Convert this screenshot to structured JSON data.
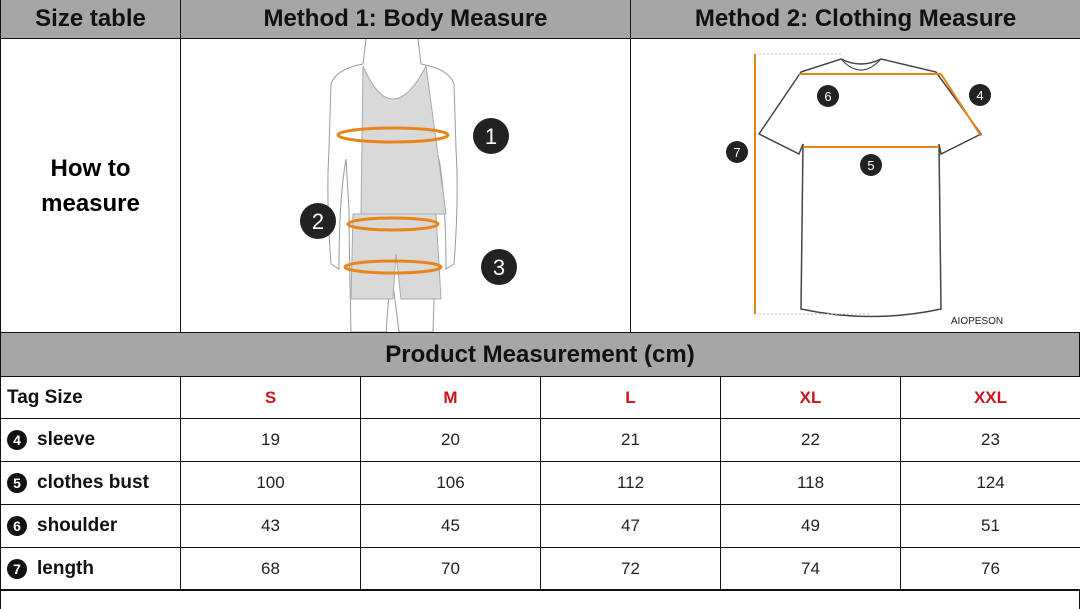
{
  "header": {
    "size_table": "Size table",
    "method1": "Method 1: Body  Measure",
    "method2": "Method 2: Clothing Measure"
  },
  "how_to": "How to measure",
  "body_markers": [
    "1",
    "2",
    "3"
  ],
  "shirt_markers": [
    "4",
    "5",
    "6",
    "7"
  ],
  "brand": "AIOPESON",
  "product_title": "Product Measurement (cm)",
  "tag_size_label": "Tag Size",
  "sizes": [
    "S",
    "M",
    "L",
    "XL",
    "XXL"
  ],
  "rows": [
    {
      "num": "4",
      "label": "sleeve",
      "values": [
        "19",
        "20",
        "21",
        "22",
        "23"
      ]
    },
    {
      "num": "5",
      "label": "clothes bust",
      "values": [
        "100",
        "106",
        "112",
        "118",
        "124"
      ]
    },
    {
      "num": "6",
      "label": "shoulder",
      "values": [
        "43",
        "45",
        "47",
        "49",
        "51"
      ]
    },
    {
      "num": "7",
      "label": "length",
      "values": [
        "68",
        "70",
        "72",
        "74",
        "76"
      ]
    }
  ],
  "colors": {
    "header_bg": "#a6a6a6",
    "accent_red": "#d0141b",
    "measure_orange": "#e8841c"
  }
}
